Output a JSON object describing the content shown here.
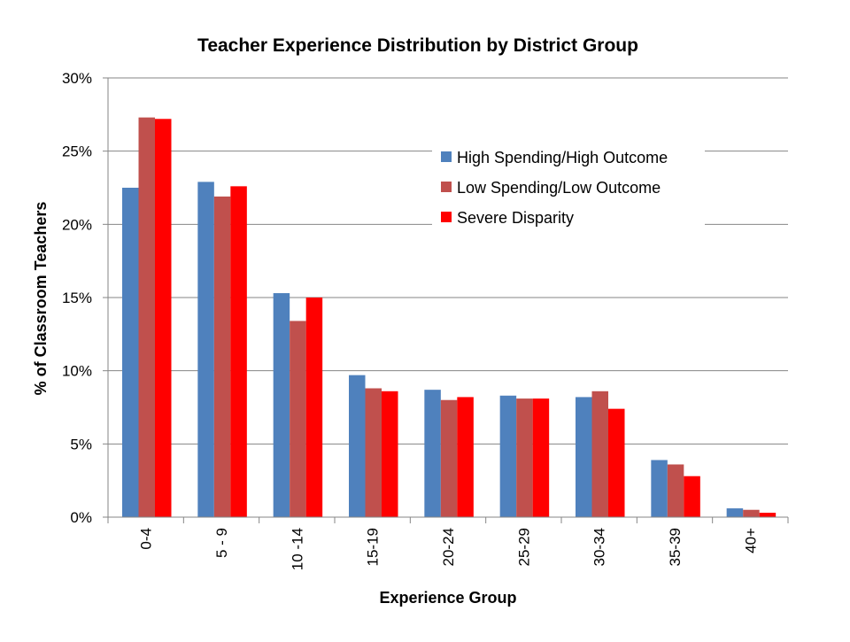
{
  "chart_data": {
    "type": "bar",
    "title": "Teacher Experience Distribution by District Group",
    "xlabel": "Experience Group",
    "ylabel": "% of Classroom Teachers",
    "categories": [
      "0-4",
      "5 - 9",
      "10 -14",
      "15-19",
      "20-24",
      "25-29",
      "30-34",
      "35-39",
      "40+"
    ],
    "ylim": [
      0,
      30
    ],
    "yticks": [
      0,
      5,
      10,
      15,
      20,
      25,
      30
    ],
    "ytick_labels": [
      "0%",
      "5%",
      "10%",
      "15%",
      "20%",
      "25%",
      "30%"
    ],
    "grid": true,
    "legend_position": "top-right",
    "series": [
      {
        "name": "High Spending/High Outcome",
        "color": "#4F81BD",
        "values": [
          22.5,
          22.9,
          15.3,
          9.7,
          8.7,
          8.3,
          8.2,
          3.9,
          0.6
        ]
      },
      {
        "name": "Low Spending/Low Outcome",
        "color": "#C0504D",
        "values": [
          27.3,
          21.9,
          13.4,
          8.8,
          8.0,
          8.1,
          8.6,
          3.6,
          0.5
        ]
      },
      {
        "name": "Severe Disparity",
        "color": "#FF0000",
        "values": [
          27.2,
          22.6,
          15.0,
          8.6,
          8.2,
          8.1,
          7.4,
          2.8,
          0.3
        ]
      }
    ]
  }
}
